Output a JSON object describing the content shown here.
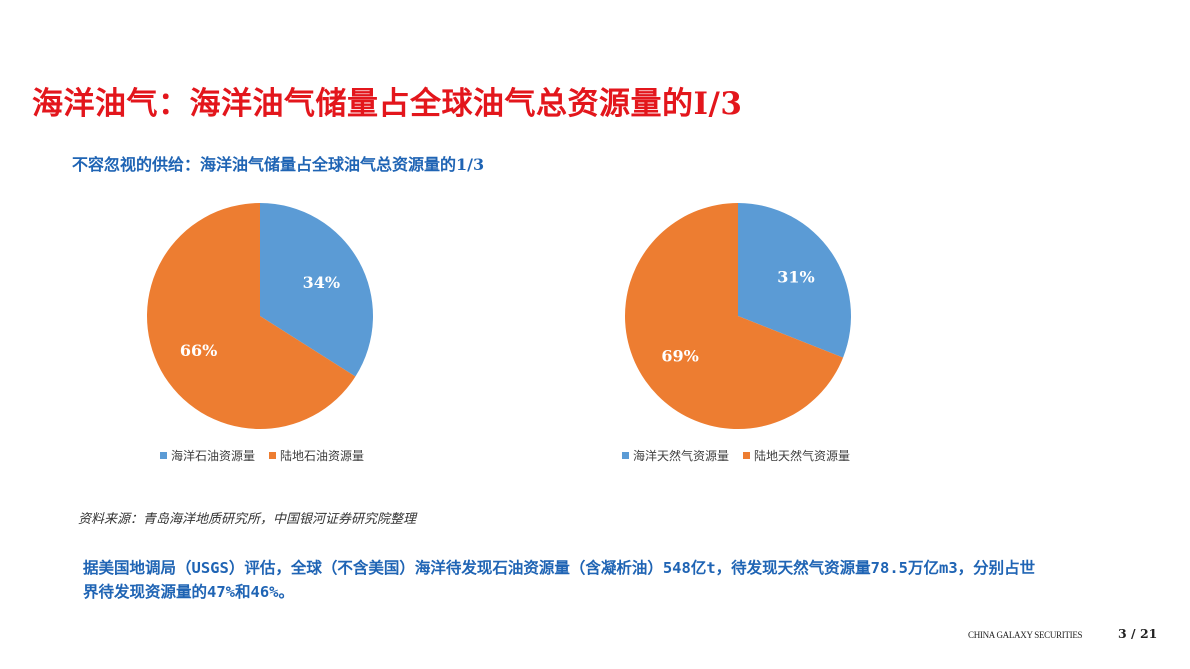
{
  "page": {
    "title": "海洋油气：海洋油气储量占全球油气总资源量的I/3",
    "subtitle": "不容忽视的供给：海洋油气储量占全球油气总资源量的1/3",
    "source": "资料来源：青岛海洋地质研究所，中国银河证券研究院整理",
    "body_text": "据美国地调局（USGS）评估，全球（不含美国）海洋待发现石油资源量（含凝析油）548亿t，待发现天然气资源量78.5万亿m3，分别占世界待发现资源量的47%和46%。",
    "footer_brand": "CHINA GALAXY SECURITIES",
    "page_number": "3 / 21"
  },
  "colors": {
    "blue": "#5b9bd5",
    "orange": "#ed7d31"
  },
  "chart_data": [
    {
      "type": "pie",
      "categories": [
        "海洋石油资源量",
        "陆地石油资源量"
      ],
      "values": [
        34,
        66
      ],
      "labels": [
        "34%",
        "66%"
      ],
      "colors": [
        "#5b9bd5",
        "#ed7d31"
      ],
      "legend": "bottom"
    },
    {
      "type": "pie",
      "categories": [
        "海洋天然气资源量",
        "陆地天然气资源量"
      ],
      "values": [
        31,
        69
      ],
      "labels": [
        "31%",
        "69%"
      ],
      "colors": [
        "#5b9bd5",
        "#ed7d31"
      ],
      "legend": "bottom"
    }
  ]
}
